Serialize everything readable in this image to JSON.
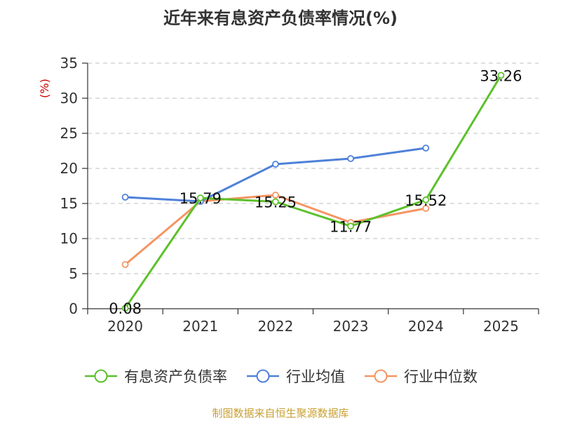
{
  "title": "近年来有息资产负债率情况(%)",
  "source": "制图数据来自恒生聚源数据库",
  "colors": {
    "debt_ratio": "#5cc12b",
    "industry_avg": "#4f81d9",
    "industry_median": "#f59462"
  },
  "chart_data": {
    "type": "line",
    "title": "近年来有息资产负债率情况(%)",
    "ylabel": "(%)",
    "xlabel": "",
    "categories": [
      "2020",
      "2021",
      "2022",
      "2023",
      "2024",
      "2025"
    ],
    "ylim": [
      0,
      35
    ],
    "yticks": [
      0,
      5,
      10,
      15,
      20,
      25,
      30,
      35
    ],
    "grid": true,
    "legend_position": "bottom",
    "series": [
      {
        "name": "有息资产负债率",
        "color": "#5cc12b",
        "values": [
          0.08,
          15.79,
          15.25,
          11.77,
          15.52,
          33.26
        ],
        "labels": [
          "0.08",
          "15.79",
          "15.25",
          "11.77",
          "15.52",
          "33.26"
        ]
      },
      {
        "name": "行业均值",
        "color": "#4f81d9",
        "values": [
          15.9,
          15.3,
          20.6,
          21.4,
          22.9,
          null
        ]
      },
      {
        "name": "行业中位数",
        "color": "#f59462",
        "values": [
          6.3,
          15.3,
          16.2,
          12.3,
          14.3,
          null
        ]
      }
    ]
  }
}
